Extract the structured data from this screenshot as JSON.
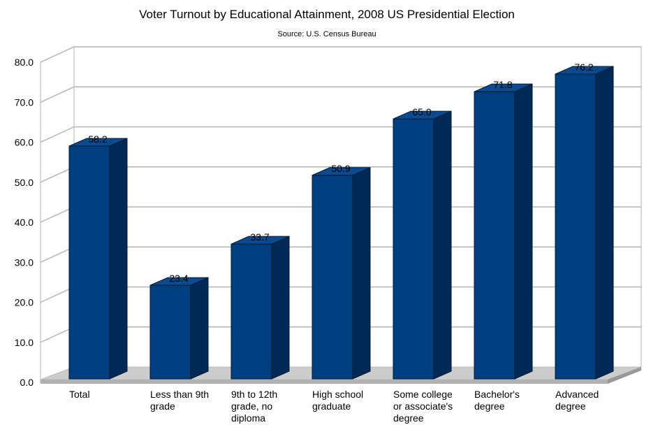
{
  "chart_data": {
    "type": "bar",
    "style": "3d",
    "title": "Voter Turnout by Educational Attainment, 2008 US Presidential Election",
    "subtitle": "Source: U.S. Census Bureau",
    "xlabel": "",
    "ylabel": "",
    "categories": [
      "Total",
      "Less than 9th grade",
      "9th to 12th grade, no diploma",
      "High school graduate",
      "Some college or associate's degree",
      "Bachelor's degree",
      "Advanced degree"
    ],
    "values": [
      58.2,
      23.4,
      33.7,
      50.9,
      65.0,
      71.8,
      76.2
    ],
    "data_labels": [
      "58.2",
      "23.4",
      "33.7",
      "50.9",
      "65.0",
      "71.8",
      "76.2"
    ],
    "ylim": [
      0,
      80
    ],
    "yticks": [
      "0.0",
      "10.0",
      "20.0",
      "30.0",
      "40.0",
      "50.0",
      "60.0",
      "70.0",
      "80.0"
    ],
    "grid": true,
    "legend": "none",
    "colors": {
      "bar_front": "#003f7f",
      "bar_side": "#002a55",
      "bar_top": "#0b4a8f",
      "floor": "#cccccc",
      "grid": "#b3b3b3"
    }
  }
}
